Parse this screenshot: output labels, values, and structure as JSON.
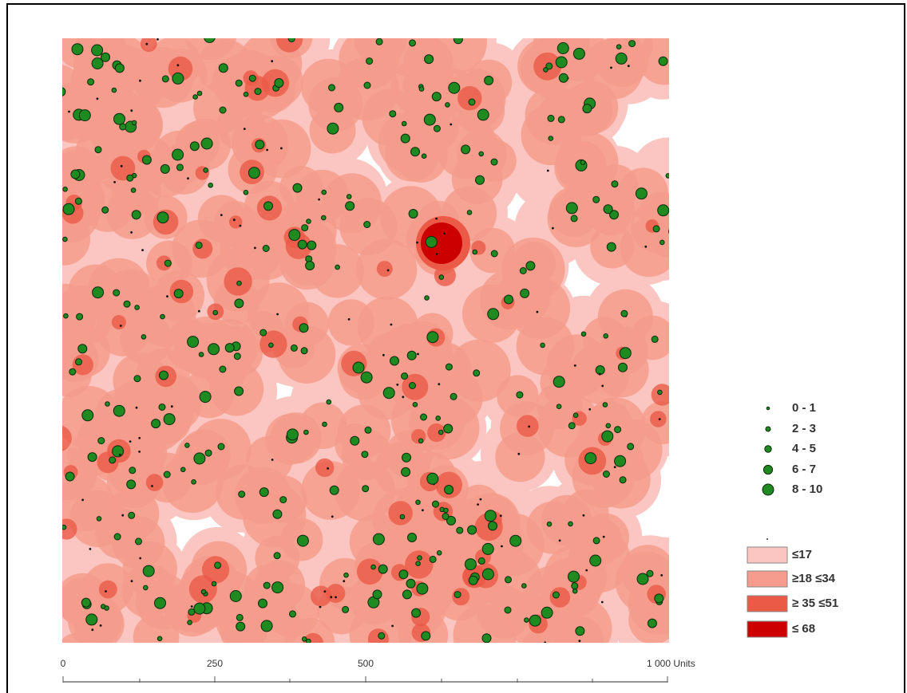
{
  "map": {
    "colors": {
      "density_le17": "#fbc6c1",
      "density_18_34": "#f59c8c",
      "density_35_51": "#eb5a47",
      "density_le68": "#cc0000",
      "point_fill": "#1f8a1f",
      "point_stroke": "#0b2a0b"
    }
  },
  "legend": {
    "points": [
      {
        "label": "0 - 1"
      },
      {
        "label": "2 - 3"
      },
      {
        "label": "4 - 5"
      },
      {
        "label": "6 - 7"
      },
      {
        "label": "8 - 10"
      }
    ],
    "density": [
      {
        "label": "≤17",
        "color": "#fbc6c1"
      },
      {
        "label": "≥18 ≤34",
        "color": "#f59c8c"
      },
      {
        "label": "≥ 35 ≤51",
        "color": "#eb5a47"
      },
      {
        "label": "≤ 68",
        "color": "#cc0000"
      }
    ]
  },
  "scale_bar": {
    "labels": [
      "0",
      "250",
      "500",
      "1 000 Units"
    ]
  }
}
